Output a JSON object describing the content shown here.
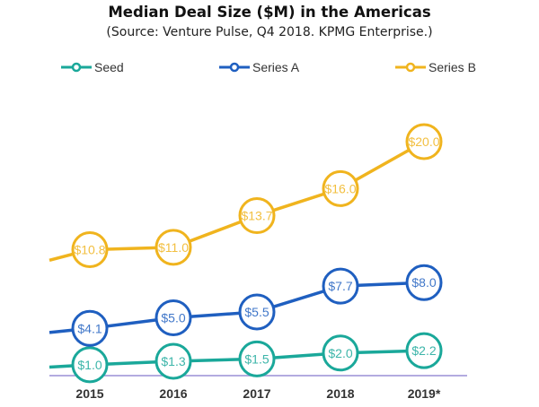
{
  "chart_data": {
    "type": "line",
    "title": "Median Deal Size ($M) in the Americas",
    "subtitle": "(Source: Venture Pulse, Q4 2018. KPMG Enterprise.)",
    "categories": [
      "2015",
      "2016",
      "2017",
      "2018",
      "2019*"
    ],
    "series": [
      {
        "name": "Seed",
        "color": "#1aa89a",
        "values": [
          1.0,
          1.3,
          1.5,
          2.0,
          2.2
        ],
        "labels": [
          "$1.0",
          "$1.3",
          "$1.5",
          "$2.0",
          "$2.2"
        ]
      },
      {
        "name": "Series A",
        "color": "#1f5fc0",
        "values": [
          4.1,
          5.0,
          5.5,
          7.7,
          8.0
        ],
        "labels": [
          "$4.1",
          "$5.0",
          "$5.5",
          "$7.7",
          "$8.0"
        ]
      },
      {
        "name": "Series B",
        "color": "#f0b41e",
        "values": [
          10.8,
          11.0,
          13.7,
          16.0,
          20.0
        ],
        "labels": [
          "$10.8",
          "$11.0",
          "$13.7",
          "$16.0",
          "$20.0"
        ]
      }
    ],
    "xlabel": "",
    "ylabel": "",
    "ylim": [
      0,
      24
    ],
    "grid": false,
    "legend": "top",
    "axis_color": "#9a8fd6"
  }
}
